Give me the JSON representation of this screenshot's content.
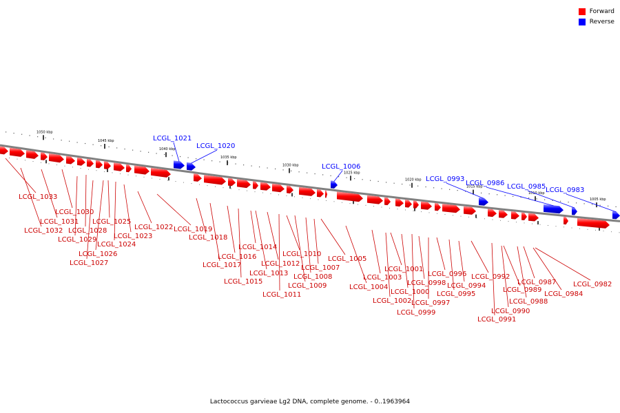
{
  "caption": "Lactococcus garvieae Lg2 DNA, complete genome. - 0..1963964",
  "legend": {
    "forward": {
      "label": "Forward",
      "color": "#ff0000"
    },
    "reverse": {
      "label": "Reverse",
      "color": "#0000ff"
    }
  },
  "colors": {
    "backbone": "#808080",
    "tick": "#000000",
    "reverse_label": "#0000ff",
    "forward_label": "#cc0000"
  },
  "ticks": [
    {
      "label": "1050 kbp",
      "kbp": 1050
    },
    {
      "label": "1045 kbp",
      "kbp": 1045
    },
    {
      "label": "1040 kbp",
      "kbp": 1040
    },
    {
      "label": "1035 kbp",
      "kbp": 1035
    },
    {
      "label": "1030 kbp",
      "kbp": 1030
    },
    {
      "label": "1025 kbp",
      "kbp": 1025
    },
    {
      "label": "1020 kbp",
      "kbp": 1020
    },
    {
      "label": "1015 kbp",
      "kbp": 1015
    },
    {
      "label": "1010 kbp",
      "kbp": 1010
    },
    {
      "label": "1005 kbp",
      "kbp": 1005
    }
  ],
  "reverse_genes": [
    {
      "label": "LCGL_1021"
    },
    {
      "label": "LCGL_1020"
    },
    {
      "label": "LCGL_1006"
    },
    {
      "label": "LCGL_0993"
    },
    {
      "label": "LCGL_0986"
    },
    {
      "label": "LCGL_0985"
    },
    {
      "label": "LCGL_0983"
    }
  ],
  "forward_genes": [
    {
      "label": "LCGL_1033"
    },
    {
      "label": "LCGL_1032"
    },
    {
      "label": "LCGL_1031"
    },
    {
      "label": "LCGL_1030"
    },
    {
      "label": "LCGL_1029"
    },
    {
      "label": "LCGL_1028"
    },
    {
      "label": "LCGL_1027"
    },
    {
      "label": "LCGL_1026"
    },
    {
      "label": "LCGL_1025"
    },
    {
      "label": "LCGL_1024"
    },
    {
      "label": "LCGL_1023"
    },
    {
      "label": "LCGL_1022"
    },
    {
      "label": "LCGL_1019"
    },
    {
      "label": "LCGL_1018"
    },
    {
      "label": "LCGL_1017"
    },
    {
      "label": "LCGL_1016"
    },
    {
      "label": "LCGL_1015"
    },
    {
      "label": "LCGL_1014"
    },
    {
      "label": "LCGL_1013"
    },
    {
      "label": "LCGL_1012"
    },
    {
      "label": "LCGL_1011"
    },
    {
      "label": "LCGL_1010"
    },
    {
      "label": "LCGL_1009"
    },
    {
      "label": "LCGL_1008"
    },
    {
      "label": "LCGL_1007"
    },
    {
      "label": "LCGL_1005"
    },
    {
      "label": "LCGL_1004"
    },
    {
      "label": "LCGL_1003"
    },
    {
      "label": "LCGL_1002"
    },
    {
      "label": "LCGL_1001"
    },
    {
      "label": "LCGL_1000"
    },
    {
      "label": "LCGL_0999"
    },
    {
      "label": "LCGL_0998"
    },
    {
      "label": "LCGL_0997"
    },
    {
      "label": "LCGL_0996"
    },
    {
      "label": "LCGL_0995"
    },
    {
      "label": "LCGL_0994"
    },
    {
      "label": "LCGL_0992"
    },
    {
      "label": "LCGL_0991"
    },
    {
      "label": "LCGL_0990"
    },
    {
      "label": "LCGL_0989"
    },
    {
      "label": "LCGL_0988"
    },
    {
      "label": "LCGL_0987"
    },
    {
      "label": "LCGL_0984"
    },
    {
      "label": "LCGL_0982"
    }
  ]
}
